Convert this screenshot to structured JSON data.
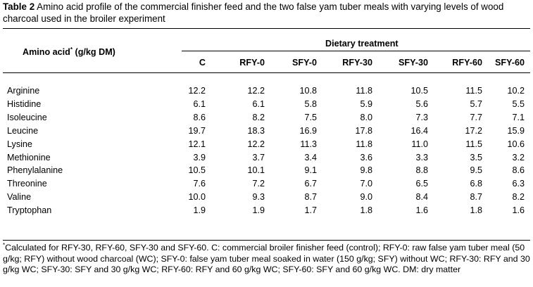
{
  "table": {
    "label": "Table 2",
    "caption": "Amino acid profile of the commercial finisher feed and the two false yam tuber meals with varying levels of wood charcoal used in the broiler experiment",
    "row_header": "Amino acid",
    "row_header_mark": "*",
    "row_header_unit": "(g/kg DM)",
    "group_header": "Dietary treatment",
    "columns": [
      "C",
      "RFY-0",
      "SFY-0",
      "RFY-30",
      "SFY-30",
      "RFY-60",
      "SFY-60"
    ],
    "rows": [
      {
        "name": "Arginine",
        "values": [
          "12.2",
          "12.2",
          "10.8",
          "11.8",
          "10.5",
          "11.5",
          "10.2"
        ]
      },
      {
        "name": "Histidine",
        "values": [
          "6.1",
          "6.1",
          "5.8",
          "5.9",
          "5.6",
          "5.7",
          "5.5"
        ]
      },
      {
        "name": "Isoleucine",
        "values": [
          "8.6",
          "8.2",
          "7.5",
          "8.0",
          "7.3",
          "7.7",
          "7.1"
        ]
      },
      {
        "name": "Leucine",
        "values": [
          "19.7",
          "18.3",
          "16.9",
          "17.8",
          "16.4",
          "17.2",
          "15.9"
        ]
      },
      {
        "name": "Lysine",
        "values": [
          "12.1",
          "12.2",
          "11.3",
          "11.8",
          "11.0",
          "11.5",
          "10.6"
        ]
      },
      {
        "name": "Methionine",
        "values": [
          "3.9",
          "3.7",
          "3.4",
          "3.6",
          "3.3",
          "3.5",
          "3.2"
        ]
      },
      {
        "name": "Phenylalanine",
        "values": [
          "10.5",
          "10.1",
          "9.1",
          "9.8",
          "8.8",
          "9.5",
          "8.6"
        ]
      },
      {
        "name": "Threonine",
        "values": [
          "7.6",
          "7.2",
          "6.7",
          "7.0",
          "6.5",
          "6.8",
          "6.3"
        ]
      },
      {
        "name": "Valine",
        "values": [
          "10.0",
          "9.3",
          "8.7",
          "9.0",
          "8.4",
          "8.7",
          "8.2"
        ]
      },
      {
        "name": "Tryptophan",
        "values": [
          "1.9",
          "1.9",
          "1.7",
          "1.8",
          "1.6",
          "1.8",
          "1.6"
        ]
      }
    ],
    "footnote_mark": "*",
    "footnote": "Calculated for RFY-30, RFY-60, SFY-30 and SFY-60. C: commercial broiler finisher feed (control); RFY-0: raw false yam tuber meal (50 g/kg; RFY) without wood charcoal (WC); SFY-0: false yam tuber meal soaked in water (150 g/kg; SFY) without WC; RFY-30: RFY and 30 g/kg WC; SFY-30: SFY and 30 g/kg WC; RFY-60: RFY and 60 g/kg WC; SFY-60: SFY and 60 g/kg WC. DM: dry matter"
  }
}
